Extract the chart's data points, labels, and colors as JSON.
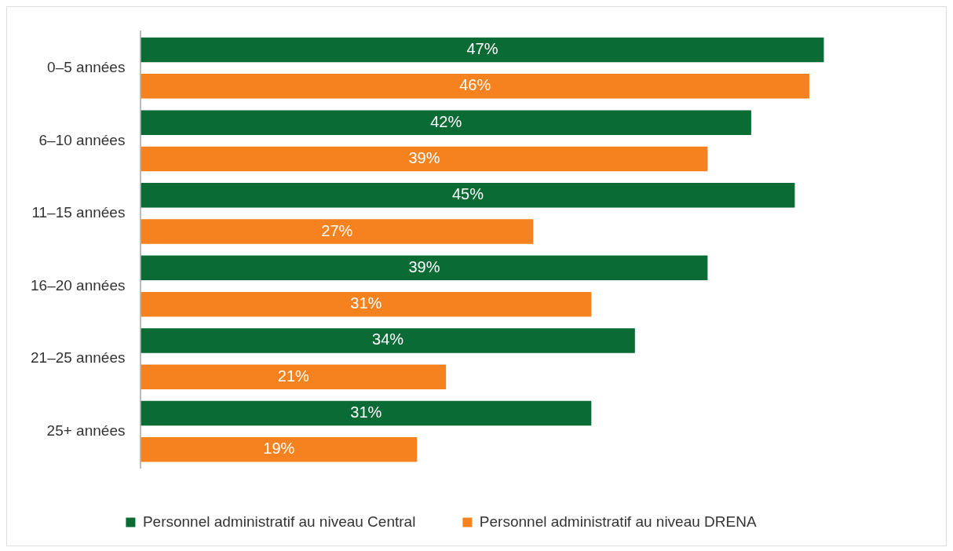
{
  "chart_data": {
    "type": "bar",
    "orientation": "horizontal",
    "categories": [
      "0–5 années",
      "6–10 années",
      "11–15 années",
      "16–20 années",
      "21–25 années",
      "25+ années"
    ],
    "series": [
      {
        "name": "Personnel administratif au niveau Central",
        "color": "#0b6b34",
        "values": [
          47,
          42,
          45,
          39,
          34,
          31
        ],
        "value_labels": [
          "47%",
          "42%",
          "45%",
          "39%",
          "34%",
          "31%"
        ]
      },
      {
        "name": "Personnel administratif au niveau DRENA",
        "color": "#f5821f",
        "values": [
          46,
          39,
          27,
          31,
          21,
          19
        ],
        "value_labels": [
          "46%",
          "39%",
          "27%",
          "31%",
          "21%",
          "19%"
        ]
      }
    ],
    "tick_labels": "y",
    "legend": "bottom"
  }
}
